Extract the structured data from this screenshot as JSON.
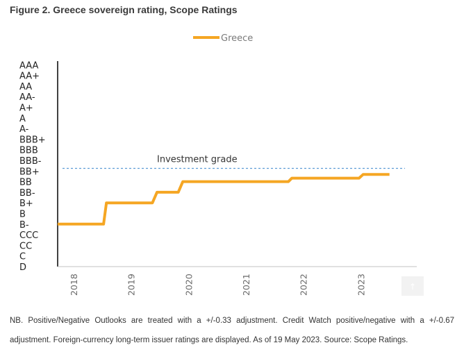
{
  "figure": {
    "title": "Figure 2. Greece sovereign rating, Scope Ratings",
    "note_line1": "NB. Positive/Negative Outlooks are treated with a +/-0.33 adjustment. Credit Watch positive/negative with a +/-0.67",
    "note_line2": "adjustment. Foreign-currency long-term issuer ratings are displayed. As of 19 May 2023. Source: Scope Ratings."
  },
  "chart_data": {
    "type": "line",
    "title": "Greece sovereign rating, Scope Ratings",
    "xlabel": "",
    "ylabel": "",
    "legend": {
      "position": "top-center",
      "entries": [
        "Greece"
      ]
    },
    "rating_scale": [
      "D",
      "C",
      "CC",
      "CCC",
      "B-",
      "B",
      "B+",
      "BB-",
      "BB",
      "BB+",
      "BBB-",
      "BBB",
      "BBB+",
      "A-",
      "A",
      "A+",
      "AA-",
      "AA",
      "AA+",
      "AAA"
    ],
    "x_ticks": [
      "2018",
      "2019",
      "2020",
      "2021",
      "2022",
      "2023"
    ],
    "xlim": [
      2017.6,
      2023.65
    ],
    "ylim": [
      0,
      19
    ],
    "series": [
      {
        "name": "Greece",
        "color": "#f5a623",
        "step_points": [
          {
            "x": 2017.6,
            "y": 4.0
          },
          {
            "x": 2018.4,
            "y": 4.0
          },
          {
            "x": 2018.45,
            "y": 6.0
          },
          {
            "x": 2019.25,
            "y": 6.0
          },
          {
            "x": 2019.33,
            "y": 7.0
          },
          {
            "x": 2019.7,
            "y": 7.0
          },
          {
            "x": 2019.78,
            "y": 8.0
          },
          {
            "x": 2021.62,
            "y": 8.0
          },
          {
            "x": 2021.68,
            "y": 8.33
          },
          {
            "x": 2022.85,
            "y": 8.33
          },
          {
            "x": 2022.92,
            "y": 8.67
          },
          {
            "x": 2023.38,
            "y": 8.67
          }
        ]
      }
    ],
    "reference_lines": [
      {
        "label": "Investment grade",
        "y": 9.25,
        "style": "dashed",
        "color": "#5b9bd5"
      }
    ],
    "grid": false
  }
}
